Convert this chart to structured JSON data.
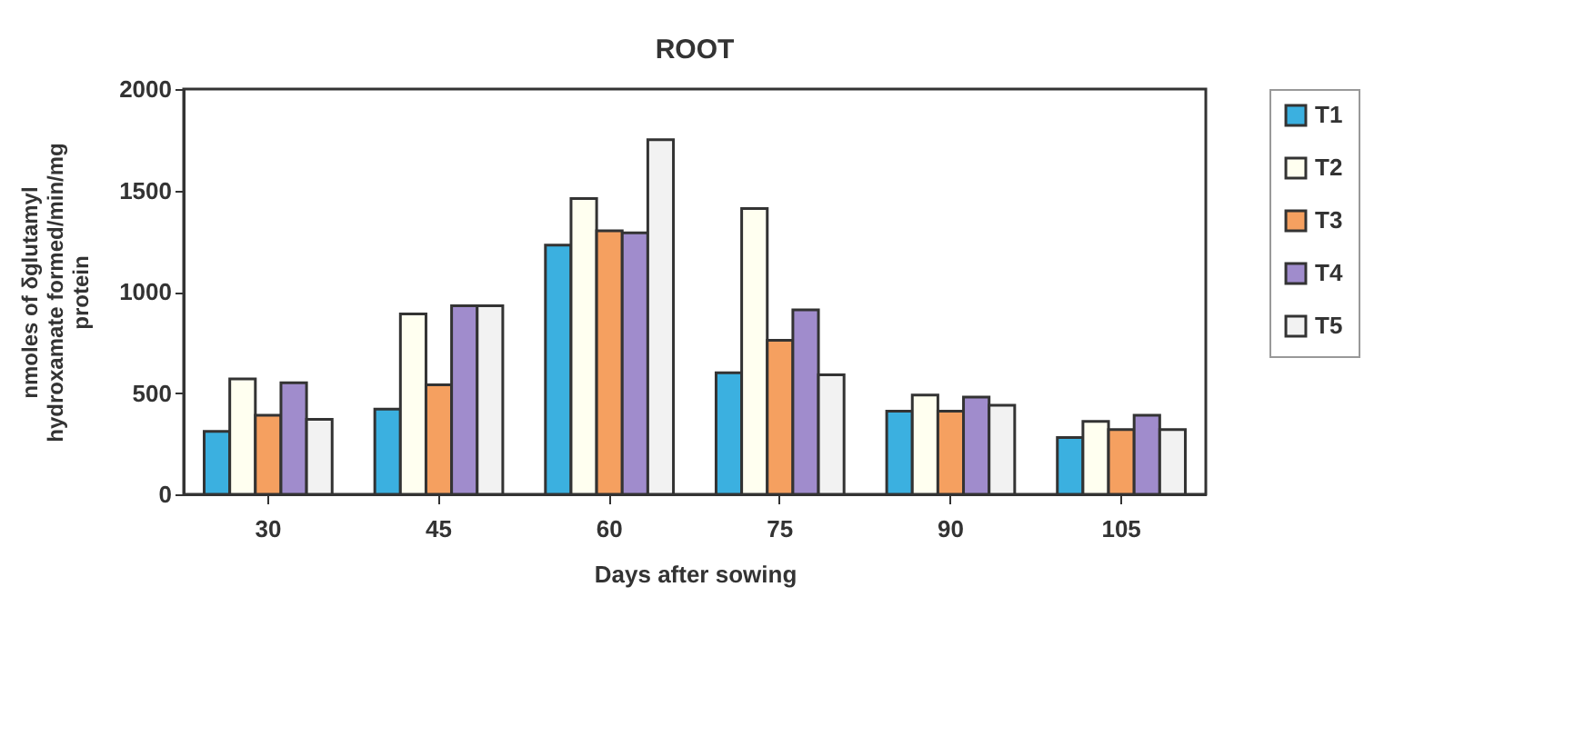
{
  "chart_data": {
    "type": "bar",
    "title": "ROOT",
    "xlabel": "Days after sowing",
    "ylabel": "nmoles of δglutamyl\nhydroxamate formed/min/mg\nprotein",
    "categories": [
      "30",
      "45",
      "60",
      "75",
      "90",
      "105"
    ],
    "series": [
      {
        "name": "T1",
        "color": "#3bb0e0",
        "values": [
          310,
          420,
          1230,
          600,
          410,
          280
        ]
      },
      {
        "name": "T2",
        "color": "#fffff0",
        "values": [
          570,
          890,
          1460,
          1410,
          490,
          360
        ]
      },
      {
        "name": "T3",
        "color": "#f5a060",
        "values": [
          390,
          540,
          1300,
          760,
          410,
          320
        ]
      },
      {
        "name": "T4",
        "color": "#a08ccc",
        "values": [
          550,
          930,
          1290,
          910,
          480,
          390
        ]
      },
      {
        "name": "T5",
        "color": "#f2f2f2",
        "values": [
          370,
          930,
          1750,
          590,
          440,
          320
        ]
      }
    ],
    "ylim": [
      0,
      2000
    ],
    "yticks": [
      0,
      500,
      1000,
      1500,
      2000
    ],
    "grid": false,
    "legend": "right"
  }
}
